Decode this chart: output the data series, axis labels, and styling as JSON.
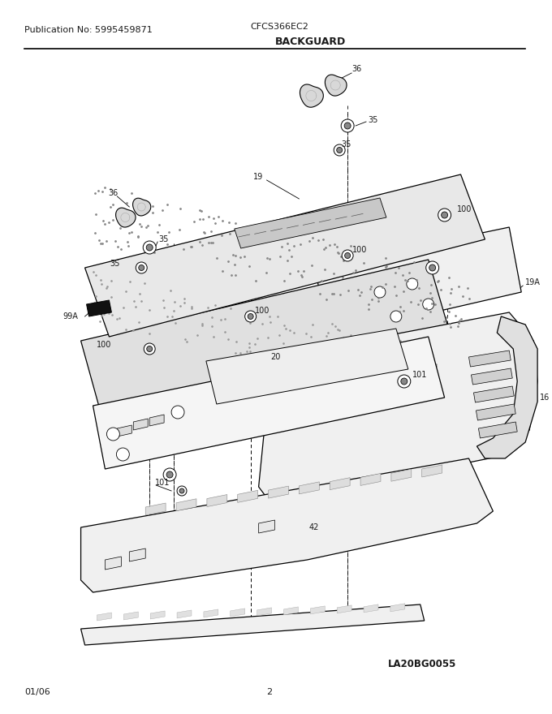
{
  "title": "BACKGUARD",
  "pub_no": "Publication No: 5995459871",
  "model": "CFCS366EC2",
  "image_ref": "LA20BG0055",
  "date": "01/06",
  "page": "2",
  "fig_width": 6.8,
  "fig_height": 8.8,
  "dpi": 100,
  "bg_color": "#ffffff",
  "line_color": "#000000",
  "text_color": "#1a1a1a",
  "header_fontsize": 8,
  "title_fontsize": 9,
  "label_fontsize": 7
}
